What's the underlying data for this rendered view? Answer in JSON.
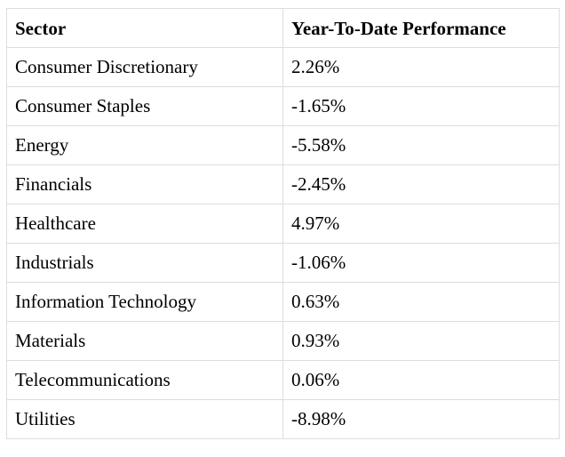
{
  "table": {
    "headers": [
      "Sector",
      "Year-To-Date Performance"
    ],
    "rows": [
      [
        "Consumer Discretionary",
        "2.26%"
      ],
      [
        "Consumer Staples",
        "-1.65%"
      ],
      [
        "Energy",
        "-5.58%"
      ],
      [
        "Financials",
        "-2.45%"
      ],
      [
        "Healthcare",
        "4.97%"
      ],
      [
        "Industrials",
        "-1.06%"
      ],
      [
        "Information Technology",
        "0.63%"
      ],
      [
        "Materials",
        "0.93%"
      ],
      [
        "Telecommunications",
        "0.06%"
      ],
      [
        "Utilities",
        "-8.98%"
      ]
    ]
  }
}
